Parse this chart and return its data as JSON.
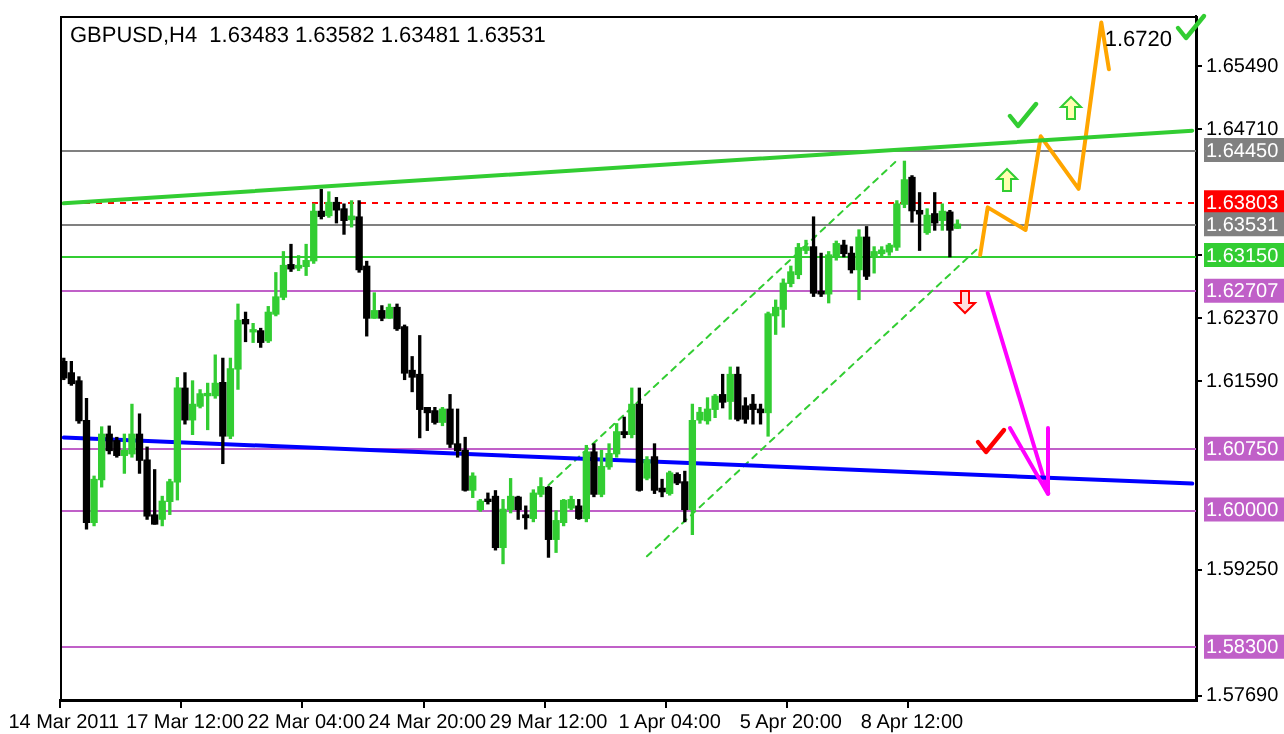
{
  "chart_data": {
    "type": "candlestick",
    "title": "GBPUSD,H4  1.63483 1.63582 1.63481 1.63531",
    "categories": [
      "14 Mar 2011",
      null,
      null,
      null,
      null,
      null,
      null,
      null,
      null,
      null,
      null,
      null,
      null,
      null,
      null,
      null,
      "17 Mar 12:00",
      null,
      null,
      null,
      null,
      null,
      null,
      null,
      null,
      null,
      null,
      null,
      null,
      null,
      null,
      null,
      "22 Mar 04:00",
      null,
      null,
      null,
      null,
      null,
      null,
      null,
      null,
      null,
      null,
      null,
      null,
      null,
      null,
      null,
      "24 Mar 20:00",
      null,
      null,
      null,
      null,
      null,
      null,
      null,
      null,
      null,
      null,
      null,
      null,
      null,
      null,
      null,
      "29 Mar 12:00",
      null,
      null,
      null,
      null,
      null,
      null,
      null,
      null,
      null,
      null,
      null,
      null,
      null,
      null,
      null,
      "1 Apr 04:00",
      null,
      null,
      null,
      null,
      null,
      null,
      null,
      null,
      null,
      null,
      null,
      null,
      null,
      null,
      null,
      "5 Apr 20:00",
      null,
      null,
      null,
      null,
      null,
      null,
      null,
      null,
      null,
      null,
      null,
      null,
      null,
      null,
      null,
      "8 Apr 12:00",
      null,
      null,
      null,
      null,
      null,
      null,
      null,
      null,
      null,
      null,
      null,
      null,
      null,
      null,
      null,
      null,
      null,
      null,
      null,
      null,
      null,
      null,
      null,
      null,
      null,
      null,
      null,
      null,
      null,
      null,
      null,
      null,
      null,
      null,
      null,
      null,
      null
    ],
    "ohlc": [
      [
        1.6183,
        1.6187,
        1.6161,
        1.6163
      ],
      [
        1.6169,
        1.6183,
        1.6154,
        1.6156
      ],
      [
        1.6159,
        1.6164,
        1.6107,
        1.611
      ],
      [
        1.611,
        1.6137,
        1.5976,
        1.5984
      ],
      [
        1.5984,
        1.6041,
        1.598,
        1.6037
      ],
      [
        1.6037,
        1.6102,
        1.6028,
        1.6093
      ],
      [
        1.6093,
        1.6103,
        1.6069,
        1.6073
      ],
      [
        1.6085,
        1.6089,
        1.6065,
        1.6067
      ],
      [
        1.6067,
        1.6093,
        1.6045,
        1.6073
      ],
      [
        1.6069,
        1.613,
        1.6065,
        1.6093
      ],
      [
        1.6093,
        1.6118,
        1.6045,
        1.6061
      ],
      [
        1.6061,
        1.6077,
        1.5988,
        1.5992
      ],
      [
        1.5993,
        1.6049,
        1.5982,
        1.5982
      ],
      [
        1.5988,
        1.6016,
        1.598,
        1.601
      ],
      [
        1.601,
        1.6037,
        1.5994,
        1.6034
      ],
      [
        1.6034,
        1.6163,
        1.6012,
        1.615
      ],
      [
        1.615,
        1.6169,
        1.6106,
        1.6111
      ],
      [
        1.6111,
        1.6159,
        1.6093,
        1.613
      ],
      [
        1.6128,
        1.6148,
        1.6126,
        1.6143
      ],
      [
        1.6141,
        1.6156,
        1.6099,
        1.6142
      ],
      [
        1.6141,
        1.6191,
        1.6138,
        1.6156
      ],
      [
        1.6157,
        1.6187,
        1.6057,
        1.6091
      ],
      [
        1.6091,
        1.6187,
        1.6088,
        1.6174
      ],
      [
        1.6174,
        1.6254,
        1.6149,
        1.6234
      ],
      [
        1.6235,
        1.6244,
        1.6208,
        1.623
      ],
      [
        1.622,
        1.623,
        1.6207,
        1.6221
      ],
      [
        1.6221,
        1.6224,
        1.6201,
        1.6207
      ],
      [
        1.6209,
        1.6251,
        1.6207,
        1.6244
      ],
      [
        1.6242,
        1.6293,
        1.624,
        1.6263
      ],
      [
        1.6263,
        1.6319,
        1.626,
        1.6302
      ],
      [
        1.6303,
        1.6328,
        1.6295,
        1.6298
      ],
      [
        1.6299,
        1.6314,
        1.6296,
        1.6302
      ],
      [
        1.6301,
        1.6328,
        1.629,
        1.6308
      ],
      [
        1.6308,
        1.6378,
        1.6305,
        1.6369
      ],
      [
        1.6369,
        1.6396,
        1.636,
        1.6363
      ],
      [
        1.6364,
        1.6393,
        1.6362,
        1.638
      ],
      [
        1.638,
        1.6386,
        1.6355,
        1.6371
      ],
      [
        1.6372,
        1.6378,
        1.6341,
        1.6358
      ],
      [
        1.6359,
        1.6382,
        1.635,
        1.6363
      ],
      [
        1.6362,
        1.6382,
        1.6294,
        1.6297
      ],
      [
        1.6301,
        1.6307,
        1.6215,
        1.6237
      ],
      [
        1.6237,
        1.6268,
        1.6237,
        1.6246
      ],
      [
        1.6246,
        1.6252,
        1.6234,
        1.6237
      ],
      [
        1.6237,
        1.6254,
        1.6237,
        1.625
      ],
      [
        1.625,
        1.6254,
        1.6222,
        1.6224
      ],
      [
        1.6226,
        1.6228,
        1.6161,
        1.6169
      ],
      [
        1.6172,
        1.6189,
        1.6146,
        1.6164
      ],
      [
        1.6167,
        1.6215,
        1.6089,
        1.6124
      ],
      [
        1.6126,
        1.6126,
        1.6098,
        1.612
      ],
      [
        1.6122,
        1.6126,
        1.6106,
        1.6108
      ],
      [
        1.6108,
        1.6126,
        1.6104,
        1.6124
      ],
      [
        1.6124,
        1.6142,
        1.6077,
        1.6081
      ],
      [
        1.6081,
        1.6124,
        1.6065,
        1.6073
      ],
      [
        1.6073,
        1.6089,
        1.6023,
        1.6024
      ],
      [
        1.6024,
        1.6045,
        1.6015,
        1.6041
      ],
      [
        1.6,
        1.6012,
        1.5998,
        1.601
      ],
      [
        1.6012,
        1.602,
        1.6007,
        1.601
      ],
      [
        1.6016,
        1.6023,
        1.595,
        1.5953
      ],
      [
        1.5953,
        1.6012,
        1.5933,
        1.6
      ],
      [
        1.6,
        1.6038,
        1.5996,
        1.6016
      ],
      [
        1.6015,
        1.6016,
        1.5988,
        1.6
      ],
      [
        1.5993,
        1.6004,
        1.5976,
        1.599
      ],
      [
        1.5989,
        1.6024,
        1.5985,
        1.602
      ],
      [
        1.6019,
        1.6039,
        1.6016,
        1.6028
      ],
      [
        1.6027,
        1.6028,
        1.5941,
        1.5963
      ],
      [
        1.5963,
        1.5998,
        1.5947,
        1.5986
      ],
      [
        1.5984,
        1.6012,
        1.598,
        1.6011
      ],
      [
        1.6002,
        1.6016,
        1.6,
        1.6012
      ],
      [
        1.6004,
        1.6012,
        1.5988,
        1.5989
      ],
      [
        1.5989,
        1.6079,
        1.5985,
        1.6071
      ],
      [
        1.6071,
        1.6081,
        1.6016,
        1.6019
      ],
      [
        1.6019,
        1.6073,
        1.6016,
        1.6053
      ],
      [
        1.6053,
        1.6081,
        1.605,
        1.6069
      ],
      [
        1.6069,
        1.6106,
        1.6065,
        1.6096
      ],
      [
        1.6096,
        1.6114,
        1.6089,
        1.6093
      ],
      [
        1.6093,
        1.615,
        1.6089,
        1.613
      ],
      [
        1.613,
        1.615,
        1.6023,
        1.6024
      ],
      [
        1.6039,
        1.6065,
        1.6037,
        1.6061
      ],
      [
        1.6065,
        1.6081,
        1.602,
        1.6024
      ],
      [
        1.6026,
        1.6037,
        1.6016,
        1.6022
      ],
      [
        1.602,
        1.6047,
        1.6018,
        1.6045
      ],
      [
        1.6043,
        1.6045,
        1.6031,
        1.6033
      ],
      [
        1.6034,
        1.6047,
        1.5985,
        1.6
      ],
      [
        1.6,
        1.613,
        1.5969,
        1.611
      ],
      [
        1.6111,
        1.6126,
        1.6107,
        1.612
      ],
      [
        1.611,
        1.6138,
        1.6106,
        1.6124
      ],
      [
        1.6124,
        1.6142,
        1.6114,
        1.614
      ],
      [
        1.6142,
        1.6167,
        1.6126,
        1.6133
      ],
      [
        1.6134,
        1.6176,
        1.6112,
        1.6167
      ],
      [
        1.6167,
        1.6176,
        1.611,
        1.6112
      ],
      [
        1.6128,
        1.6138,
        1.6107,
        1.6112
      ],
      [
        1.613,
        1.6142,
        1.6106,
        1.6124
      ],
      [
        1.6124,
        1.613,
        1.6106,
        1.612
      ],
      [
        1.612,
        1.6244,
        1.6091,
        1.6242
      ],
      [
        1.624,
        1.6259,
        1.6217,
        1.625
      ],
      [
        1.6248,
        1.6285,
        1.6226,
        1.628
      ],
      [
        1.628,
        1.6301,
        1.6276,
        1.6294
      ],
      [
        1.6291,
        1.6329,
        1.6286,
        1.6324
      ],
      [
        1.6321,
        1.6333,
        1.6317,
        1.6325
      ],
      [
        1.6325,
        1.6362,
        1.6264,
        1.6268
      ],
      [
        1.627,
        1.6317,
        1.6264,
        1.6267
      ],
      [
        1.6267,
        1.6319,
        1.6256,
        1.6315
      ],
      [
        1.6313,
        1.6332,
        1.6309,
        1.6329
      ],
      [
        1.6327,
        1.6333,
        1.6313,
        1.6317
      ],
      [
        1.6317,
        1.6325,
        1.6293,
        1.6297
      ],
      [
        1.6297,
        1.6346,
        1.626,
        1.6337
      ],
      [
        1.6337,
        1.635,
        1.6285,
        1.6289
      ],
      [
        1.6313,
        1.6325,
        1.6293,
        1.6319
      ],
      [
        1.6317,
        1.6325,
        1.6313,
        1.6321
      ],
      [
        1.6319,
        1.6329,
        1.6315,
        1.6327
      ],
      [
        1.6325,
        1.6382,
        1.6321,
        1.6378
      ],
      [
        1.6378,
        1.6431,
        1.6374,
        1.6408
      ],
      [
        1.6411,
        1.6413,
        1.6356,
        1.637
      ],
      [
        1.637,
        1.6392,
        1.6321,
        1.6366
      ],
      [
        1.6343,
        1.6372,
        1.6341,
        1.6364
      ],
      [
        1.6366,
        1.6392,
        1.6346,
        1.6355
      ],
      [
        1.6358,
        1.6378,
        1.6346,
        1.6369
      ],
      [
        1.6368,
        1.637,
        1.6313,
        1.6346
      ],
      [
        1.63483,
        1.63582,
        1.63481,
        1.63531
      ],
      null,
      null,
      null,
      null,
      null,
      null,
      null,
      null,
      null,
      null,
      null,
      null,
      null,
      null,
      null,
      null,
      null,
      null,
      null,
      null,
      null,
      null,
      null,
      null,
      null,
      null,
      null,
      null,
      null,
      null,
      null
    ],
    "series": [
      {
        "type": "line",
        "color": "#32cd32",
        "values": [
          1.6379,
          null,
          null,
          null,
          null,
          null,
          null,
          null,
          null,
          null,
          null,
          null,
          null,
          null,
          null,
          null,
          null,
          null,
          null,
          null,
          null,
          null,
          null,
          null,
          null,
          null,
          null,
          null,
          null,
          null,
          null,
          null,
          null,
          null,
          null,
          null,
          null,
          null,
          null,
          null,
          null,
          null,
          null,
          null,
          null,
          null,
          null,
          null,
          null,
          null,
          null,
          null,
          null,
          null,
          null,
          null,
          null,
          null,
          null,
          null,
          null,
          null,
          null,
          null,
          null,
          null,
          null,
          null,
          null,
          null,
          null,
          null,
          null,
          null,
          null,
          null,
          null,
          null,
          null,
          null,
          null,
          null,
          null,
          null,
          null,
          null,
          null,
          null,
          null,
          null,
          null,
          null,
          null,
          null,
          null,
          null,
          null,
          null,
          null,
          null,
          null,
          null,
          null,
          null,
          null,
          null,
          null,
          null,
          null,
          null,
          null,
          null,
          null,
          null,
          null,
          null,
          null,
          null,
          null,
          null,
          null,
          null,
          null,
          null,
          null,
          null,
          null,
          null,
          null,
          null,
          null,
          null,
          null,
          null,
          null,
          null,
          null,
          null,
          null,
          null,
          null,
          null,
          null,
          null,
          null,
          null,
          null,
          null,
          null,
          1.6469
        ]
      },
      {
        "type": "line",
        "color": "#0000ff",
        "values": [
          1.6089,
          null,
          null,
          null,
          null,
          null,
          null,
          null,
          null,
          null,
          null,
          null,
          null,
          null,
          null,
          null,
          null,
          null,
          null,
          null,
          null,
          null,
          null,
          null,
          null,
          null,
          null,
          null,
          null,
          null,
          null,
          null,
          null,
          null,
          null,
          null,
          null,
          null,
          null,
          null,
          null,
          null,
          null,
          null,
          null,
          null,
          null,
          null,
          null,
          null,
          null,
          null,
          null,
          null,
          null,
          null,
          null,
          null,
          null,
          null,
          null,
          null,
          null,
          null,
          null,
          null,
          null,
          null,
          null,
          null,
          null,
          null,
          null,
          null,
          null,
          null,
          null,
          null,
          null,
          null,
          null,
          null,
          null,
          null,
          null,
          null,
          null,
          null,
          null,
          null,
          null,
          null,
          null,
          null,
          null,
          null,
          null,
          null,
          null,
          null,
          null,
          null,
          null,
          null,
          null,
          null,
          null,
          null,
          null,
          null,
          null,
          null,
          null,
          null,
          null,
          null,
          null,
          null,
          null,
          null,
          null,
          null,
          null,
          null,
          null,
          null,
          null,
          null,
          null,
          null,
          null,
          null,
          null,
          null,
          null,
          null,
          null,
          null,
          null,
          null,
          null,
          null,
          null,
          null,
          null,
          null,
          null,
          null,
          null,
          1.6032
        ]
      },
      {
        "type": "line",
        "color": "#32cd32",
        "line_style": "dashed",
        "values": [
          null,
          null,
          null,
          null,
          null,
          null,
          null,
          null,
          null,
          null,
          null,
          null,
          null,
          null,
          null,
          null,
          null,
          null,
          null,
          null,
          null,
          null,
          null,
          null,
          null,
          null,
          null,
          null,
          null,
          null,
          null,
          null,
          null,
          null,
          null,
          null,
          null,
          null,
          null,
          null,
          null,
          null,
          null,
          null,
          null,
          null,
          null,
          null,
          null,
          null,
          null,
          null,
          null,
          null,
          null,
          null,
          null,
          null,
          null,
          null,
          null,
          null,
          null,
          null,
          1.603,
          null,
          null,
          null,
          null,
          null,
          null,
          null,
          null,
          null,
          null,
          null,
          null,
          null,
          null,
          null,
          null,
          null,
          null,
          null,
          null,
          null,
          null,
          null,
          null,
          null,
          null,
          null,
          null,
          null,
          null,
          null,
          null,
          null,
          null,
          null,
          null,
          null,
          null,
          null,
          null,
          null,
          null,
          null,
          null,
          null,
          1.6432,
          null,
          null,
          null,
          null,
          null,
          null,
          null,
          null,
          null,
          null,
          null,
          null,
          null,
          null,
          null,
          null,
          null,
          null,
          null,
          null,
          null,
          null,
          null,
          null,
          null,
          null,
          null,
          null,
          null,
          null,
          null,
          null,
          null,
          null,
          null,
          null,
          null,
          null,
          null
        ]
      },
      {
        "type": "line",
        "color": "#32cd32",
        "line_style": "dashed",
        "values": [
          null,
          null,
          null,
          null,
          null,
          null,
          null,
          null,
          null,
          null,
          null,
          null,
          null,
          null,
          null,
          null,
          null,
          null,
          null,
          null,
          null,
          null,
          null,
          null,
          null,
          null,
          null,
          null,
          null,
          null,
          null,
          null,
          null,
          null,
          null,
          null,
          null,
          null,
          null,
          null,
          null,
          null,
          null,
          null,
          null,
          null,
          null,
          null,
          null,
          null,
          null,
          null,
          null,
          null,
          null,
          null,
          null,
          null,
          null,
          null,
          null,
          null,
          null,
          null,
          null,
          null,
          null,
          null,
          null,
          null,
          null,
          null,
          null,
          null,
          null,
          null,
          null,
          1.5942,
          null,
          null,
          null,
          null,
          null,
          null,
          null,
          null,
          null,
          null,
          null,
          null,
          null,
          null,
          null,
          null,
          null,
          null,
          null,
          null,
          null,
          null,
          null,
          null,
          null,
          null,
          null,
          null,
          null,
          null,
          null,
          null,
          null,
          null,
          null,
          null,
          null,
          null,
          null,
          null,
          null,
          null,
          null,
          1.6326,
          null,
          null,
          null,
          null,
          null,
          null,
          null,
          null,
          null,
          null,
          null,
          null,
          null,
          null,
          null,
          null,
          null,
          null,
          null,
          null,
          null,
          null,
          null,
          null,
          null,
          null,
          null,
          null
        ]
      },
      {
        "type": "line",
        "color": "#ffa500",
        "values": [
          null,
          null,
          null,
          null,
          null,
          null,
          null,
          null,
          null,
          null,
          null,
          null,
          null,
          null,
          null,
          null,
          null,
          null,
          null,
          null,
          null,
          null,
          null,
          null,
          null,
          null,
          null,
          null,
          null,
          null,
          null,
          null,
          null,
          null,
          null,
          null,
          null,
          null,
          null,
          null,
          null,
          null,
          null,
          null,
          null,
          null,
          null,
          null,
          null,
          null,
          null,
          null,
          null,
          null,
          null,
          null,
          null,
          null,
          null,
          null,
          null,
          null,
          null,
          null,
          null,
          null,
          null,
          null,
          null,
          null,
          null,
          null,
          null,
          null,
          null,
          null,
          null,
          null,
          null,
          null,
          null,
          null,
          null,
          null,
          null,
          null,
          null,
          null,
          null,
          null,
          null,
          null,
          null,
          null,
          null,
          null,
          null,
          null,
          null,
          null,
          null,
          null,
          null,
          null,
          null,
          null,
          null,
          null,
          null,
          null,
          null,
          null,
          null,
          null,
          null,
          null,
          null,
          null,
          null,
          null,
          null,
          1.6315,
          1.6374,
          null,
          null,
          null,
          null,
          1.6346,
          null,
          1.6462,
          null,
          null,
          null,
          null,
          1.6397,
          null,
          null,
          1.6603,
          1.6545,
          null,
          null,
          null,
          null,
          null,
          null,
          null,
          null,
          null,
          null,
          null
        ]
      },
      {
        "type": "line",
        "color": "#ff00ff",
        "values": [
          null,
          null,
          null,
          null,
          null,
          null,
          null,
          null,
          null,
          null,
          null,
          null,
          null,
          null,
          null,
          null,
          null,
          null,
          null,
          null,
          null,
          null,
          null,
          null,
          null,
          null,
          null,
          null,
          null,
          null,
          null,
          null,
          null,
          null,
          null,
          null,
          null,
          null,
          null,
          null,
          null,
          null,
          null,
          null,
          null,
          null,
          null,
          null,
          null,
          null,
          null,
          null,
          null,
          null,
          null,
          null,
          null,
          null,
          null,
          null,
          null,
          null,
          null,
          null,
          null,
          null,
          null,
          null,
          null,
          null,
          null,
          null,
          null,
          null,
          null,
          null,
          null,
          null,
          null,
          null,
          null,
          null,
          null,
          null,
          null,
          null,
          null,
          null,
          null,
          null,
          null,
          null,
          null,
          null,
          null,
          null,
          null,
          null,
          null,
          null,
          null,
          null,
          null,
          null,
          null,
          null,
          null,
          null,
          null,
          null,
          null,
          null,
          null,
          null,
          null,
          null,
          null,
          null,
          null,
          null,
          null,
          null,
          1.6268,
          null,
          null,
          null,
          null,
          null,
          null,
          null,
          1.602,
          null,
          null,
          null,
          null,
          null,
          null,
          null,
          null,
          null,
          null,
          null,
          null,
          null,
          null,
          null,
          null,
          null,
          null,
          null
        ]
      }
    ],
    "ylim": [
      1.5764,
      1.6611
    ],
    "yticks": [
      {
        "value": 1.5769,
        "label": "1.57690"
      },
      {
        "value": 1.5925,
        "label": "1.59250"
      },
      {
        "value": 1.6159,
        "label": "1.61590"
      },
      {
        "value": 1.6237,
        "label": "1.62370"
      },
      {
        "value": 1.6315,
        "label": null
      },
      {
        "value": 1.6471,
        "label": "1.64710"
      },
      {
        "value": 1.6549,
        "label": "1.65490"
      }
    ],
    "ref_lines": [
      {
        "axis": "y",
        "value": 1.6445,
        "label": "1.64450",
        "color": "#808080"
      },
      {
        "axis": "y",
        "value": 1.63803,
        "label": "1.63803",
        "color": "#ff0000",
        "line_style": "dashed"
      },
      {
        "axis": "y",
        "value": 1.63531,
        "label": "1.63531",
        "color": "#808080"
      },
      {
        "axis": "y",
        "value": 1.6315,
        "label": "1.63150",
        "color": "#32cd32"
      },
      {
        "axis": "y",
        "value": 1.62707,
        "label": "1.62707",
        "color": "#c060c8"
      },
      {
        "axis": "y",
        "value": 1.6075,
        "label": "1.60750",
        "color": "#c060c8"
      },
      {
        "axis": "y",
        "value": 1.6,
        "label": "1.60000",
        "color": "#c060c8"
      },
      {
        "axis": "y",
        "value": 1.583,
        "label": "1.58300",
        "color": "#c060c8"
      }
    ],
    "annotations": [
      "1.6720"
    ],
    "grid": false,
    "legend": false
  }
}
